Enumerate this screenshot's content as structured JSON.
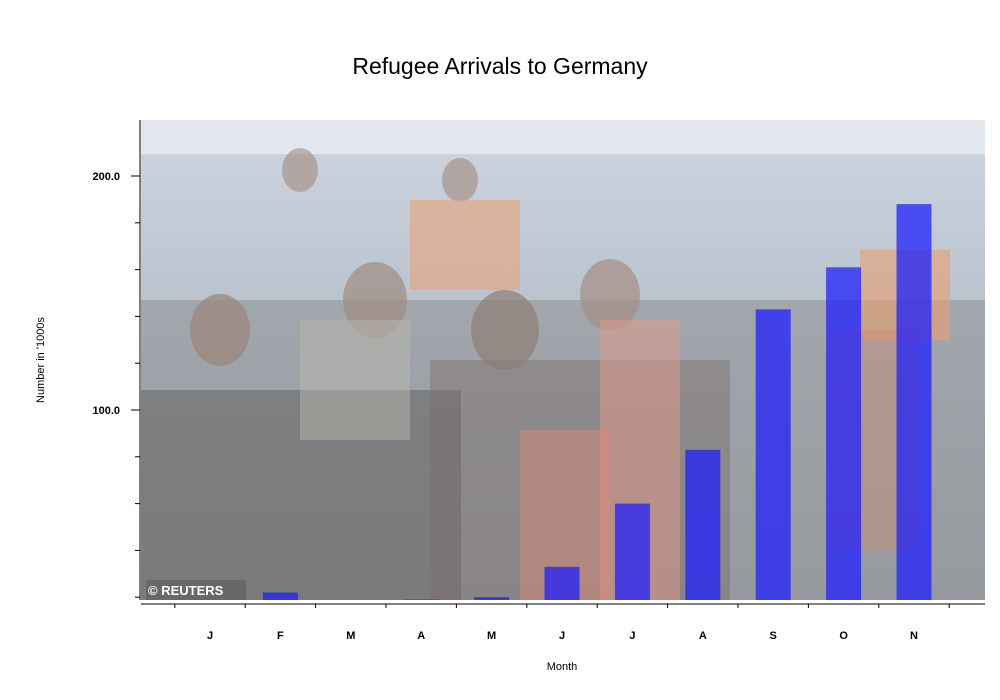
{
  "chart_data": {
    "type": "bar",
    "title": "Refugee Arrivals to Germany",
    "xlabel": "Month",
    "ylabel": "Number in '1000s",
    "categories": [
      "J",
      "F",
      "M",
      "A",
      "M",
      "J",
      "J",
      "A",
      "S",
      "O",
      "N"
    ],
    "values": [
      17,
      22,
      17,
      19,
      20,
      33,
      60,
      83,
      143,
      161,
      188
    ],
    "ylim": [
      0,
      205
    ],
    "yticks": [
      100,
      200
    ],
    "ytick_labels": [
      "100.0",
      "200.0"
    ],
    "bar_color": "#1a1aff",
    "grid": false,
    "legend": "none"
  },
  "background_photo": {
    "credit": "© REUTERS"
  }
}
